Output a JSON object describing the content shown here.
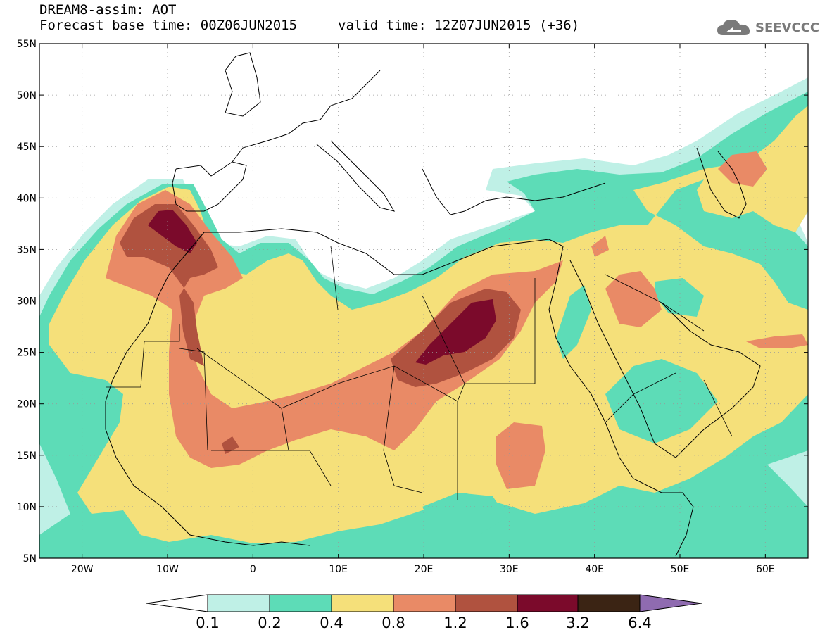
{
  "header": {
    "title": "DREAM8-assim: AOT",
    "base_time": "Forecast base time: 00Z06JUN2015",
    "valid_time": "valid time: 12Z07JUN2015 (+36)"
  },
  "logo": {
    "text": "SEEVCCC",
    "icon": "cloud-logo-icon"
  },
  "map": {
    "lon_range": [
      -25,
      65
    ],
    "lat_range": [
      5,
      55
    ],
    "lat_ticks": [
      {
        "v": 55,
        "label": "55N"
      },
      {
        "v": 50,
        "label": "50N"
      },
      {
        "v": 45,
        "label": "45N"
      },
      {
        "v": 40,
        "label": "40N"
      },
      {
        "v": 35,
        "label": "35N"
      },
      {
        "v": 30,
        "label": "30N"
      },
      {
        "v": 25,
        "label": "25N"
      },
      {
        "v": 20,
        "label": "20N"
      },
      {
        "v": 15,
        "label": "15N"
      },
      {
        "v": 10,
        "label": "10N"
      },
      {
        "v": 5,
        "label": "5N"
      }
    ],
    "lon_ticks": [
      {
        "v": -20,
        "label": "20W"
      },
      {
        "v": -10,
        "label": "10W"
      },
      {
        "v": 0,
        "label": "0"
      },
      {
        "v": 10,
        "label": "10E"
      },
      {
        "v": 20,
        "label": "20E"
      },
      {
        "v": 30,
        "label": "30E"
      },
      {
        "v": 40,
        "label": "40E"
      },
      {
        "v": 50,
        "label": "50E"
      },
      {
        "v": 60,
        "label": "60E"
      }
    ]
  },
  "colorbar": {
    "labels": [
      "0.1",
      "0.2",
      "0.4",
      "0.8",
      "1.2",
      "1.6",
      "3.2",
      "6.4"
    ],
    "colors": {
      "c1": "#bff0e6",
      "c2": "#5ddcb7",
      "c3": "#f5e07a",
      "c4": "#e98a66",
      "c5": "#b0523f",
      "c6": "#7b0a2b",
      "c7": "#3b2414",
      "c8": "#8f6bb0"
    }
  }
}
